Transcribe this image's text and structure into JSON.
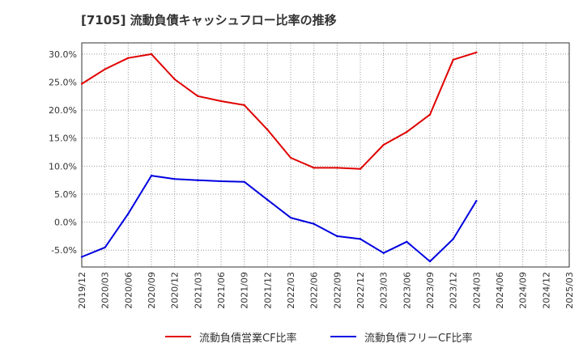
{
  "chart_data": {
    "type": "line",
    "title": "[7105]  流動負債キャッシュフロー比率の推移",
    "categories": [
      "2019/12",
      "2020/03",
      "2020/06",
      "2020/09",
      "2020/12",
      "2021/03",
      "2021/06",
      "2021/09",
      "2021/12",
      "2022/03",
      "2022/06",
      "2022/09",
      "2022/12",
      "2023/03",
      "2023/06",
      "2023/09",
      "2023/12",
      "2024/03",
      "2024/06",
      "2024/09",
      "2024/12",
      "2025/03"
    ],
    "series": [
      {
        "name": "流動負債営業CF比率",
        "color": "#e00000",
        "values": [
          24.7,
          27.3,
          29.3,
          30.0,
          25.5,
          22.5,
          21.6,
          20.9,
          16.5,
          11.5,
          9.7,
          9.7,
          9.5,
          13.8,
          16.1,
          19.2,
          29.0,
          30.3,
          null,
          null,
          null,
          null
        ]
      },
      {
        "name": "流動負債フリーCF比率",
        "color": "#0000e0",
        "values": [
          -6.2,
          -4.5,
          1.5,
          8.3,
          7.7,
          7.5,
          7.3,
          7.2,
          4.0,
          0.8,
          -0.3,
          -2.5,
          -3.0,
          -5.5,
          -3.5,
          -7.0,
          -3.0,
          3.8,
          null,
          null,
          null,
          null
        ]
      }
    ],
    "yticks": [
      "30.0%",
      "25.0%",
      "20.0%",
      "15.0%",
      "10.0%",
      "5.0%",
      "0.0%",
      "-5.0%"
    ],
    "ytick_values": [
      30,
      25,
      20,
      15,
      10,
      5,
      0,
      -5
    ],
    "ylim": [
      -8,
      32
    ],
    "xlabel": "",
    "ylabel": "",
    "grid": true,
    "legend_position": "bottom"
  }
}
